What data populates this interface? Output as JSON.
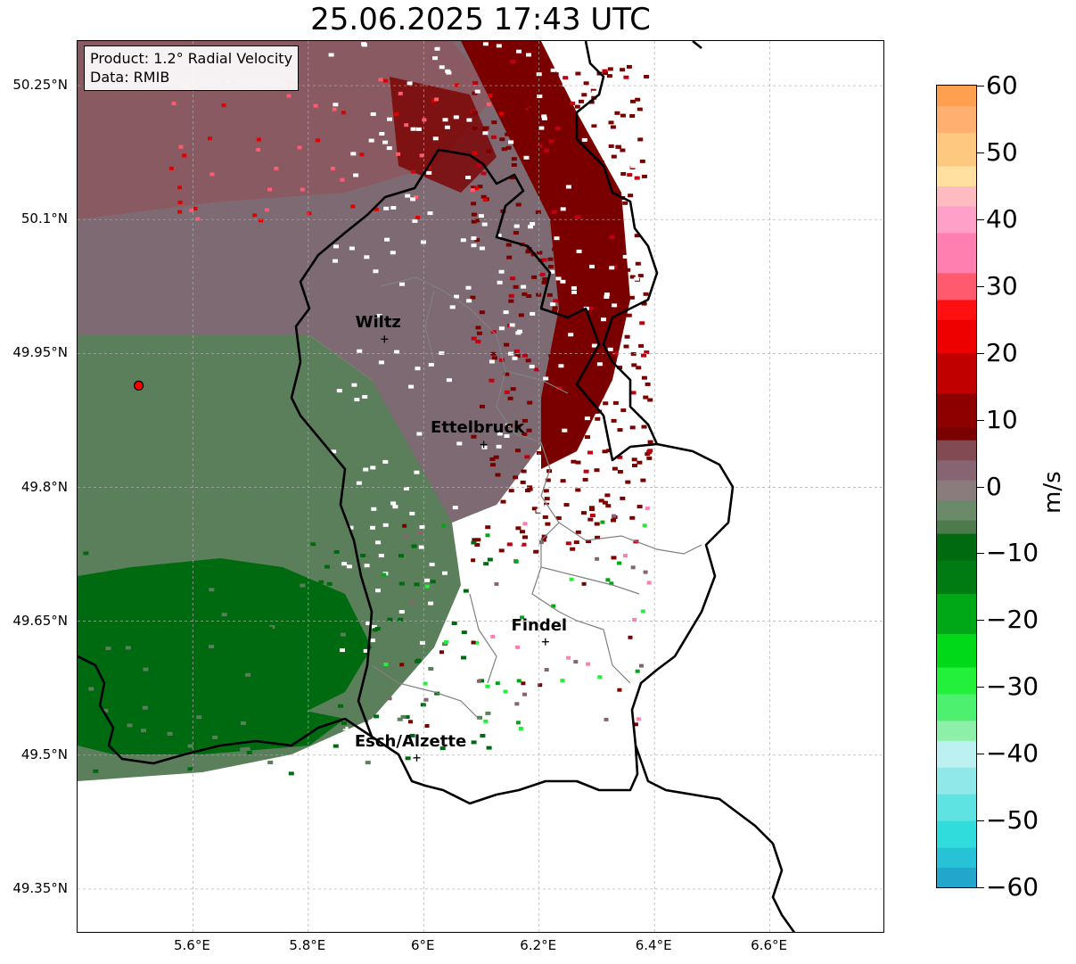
{
  "title": "25.06.2025 17:43 UTC",
  "info_box": {
    "product": "Product: 1.2° Radial Velocity",
    "source": "Data: RMIB"
  },
  "map": {
    "lat_range": [
      49.3,
      50.3
    ],
    "lon_range": [
      5.4,
      6.8
    ],
    "lat_ticks": [
      {
        "value": 50.25,
        "label": "50.25°N"
      },
      {
        "value": 50.1,
        "label": "50.1°N"
      },
      {
        "value": 49.95,
        "label": "49.95°N"
      },
      {
        "value": 49.8,
        "label": "49.8°N"
      },
      {
        "value": 49.65,
        "label": "49.65°N"
      },
      {
        "value": 49.5,
        "label": "49.5°N"
      },
      {
        "value": 49.35,
        "label": "49.35°N"
      }
    ],
    "lon_ticks": [
      {
        "value": 5.6,
        "label": "5.6°E"
      },
      {
        "value": 5.8,
        "label": "5.8°E"
      },
      {
        "value": 6.0,
        "label": "6°E"
      },
      {
        "value": 6.2,
        "label": "6.2°E"
      },
      {
        "value": 6.4,
        "label": "6.4°E"
      },
      {
        "value": 6.6,
        "label": "6.6°E"
      }
    ],
    "gridlines": true,
    "radar_site": {
      "lat": 49.914,
      "lon": 5.506,
      "color": "#ff0000"
    },
    "cities": [
      {
        "name": "Wiltz",
        "lat": 49.966,
        "lon": 5.932
      },
      {
        "name": "Ettelbruck",
        "lat": 49.848,
        "lon": 6.104
      },
      {
        "name": "Findel",
        "lat": 49.627,
        "lon": 6.211
      },
      {
        "name": "Esch/Alzette",
        "lat": 49.497,
        "lon": 5.988
      }
    ]
  },
  "colorbar": {
    "label": "m/s",
    "min": -60,
    "max": 60,
    "ticks": [
      {
        "value": 60,
        "label": "60"
      },
      {
        "value": 50,
        "label": "50"
      },
      {
        "value": 40,
        "label": "40"
      },
      {
        "value": 30,
        "label": "30"
      },
      {
        "value": 20,
        "label": "20"
      },
      {
        "value": 10,
        "label": "10"
      },
      {
        "value": 0,
        "label": "0"
      },
      {
        "value": -10,
        "label": "−10"
      },
      {
        "value": -20,
        "label": "−20"
      },
      {
        "value": -30,
        "label": "−30"
      },
      {
        "value": -40,
        "label": "−40"
      },
      {
        "value": -50,
        "label": "−50"
      },
      {
        "value": -60,
        "label": "−60"
      }
    ],
    "stops": [
      {
        "v": -60,
        "color": "#1f78c0"
      },
      {
        "v": -57,
        "color": "#22a6cc"
      },
      {
        "v": -54,
        "color": "#27c2d6"
      },
      {
        "v": -50,
        "color": "#30dcdc"
      },
      {
        "v": -46,
        "color": "#5fe2e2"
      },
      {
        "v": -42,
        "color": "#90e8e8"
      },
      {
        "v": -38,
        "color": "#bdf0f0"
      },
      {
        "v": -35,
        "color": "#8ef0a8"
      },
      {
        "v": -31,
        "color": "#4ef070"
      },
      {
        "v": -27,
        "color": "#22f03a"
      },
      {
        "v": -22,
        "color": "#00d81a"
      },
      {
        "v": -16,
        "color": "#00a818"
      },
      {
        "v": -11,
        "color": "#007a12"
      },
      {
        "v": -7,
        "color": "#006a10"
      },
      {
        "v": -5,
        "color": "#4e7a4e"
      },
      {
        "v": -2,
        "color": "#6a8a6a"
      },
      {
        "v": 1,
        "color": "#8a7c7c"
      },
      {
        "v": 4,
        "color": "#866472"
      },
      {
        "v": 7,
        "color": "#824a52"
      },
      {
        "v": 9,
        "color": "#7a0000"
      },
      {
        "v": 14,
        "color": "#8c0000"
      },
      {
        "v": 20,
        "color": "#c00000"
      },
      {
        "v": 25,
        "color": "#ee0000"
      },
      {
        "v": 28,
        "color": "#ff1010"
      },
      {
        "v": 32,
        "color": "#ff5a6e"
      },
      {
        "v": 38,
        "color": "#ff80b0"
      },
      {
        "v": 42,
        "color": "#ffa0c8"
      },
      {
        "v": 45,
        "color": "#ffbcc0"
      },
      {
        "v": 48,
        "color": "#ffe0a0"
      },
      {
        "v": 53,
        "color": "#ffc880"
      },
      {
        "v": 57,
        "color": "#ffb070"
      },
      {
        "v": 60,
        "color": "#ffa050"
      }
    ]
  }
}
